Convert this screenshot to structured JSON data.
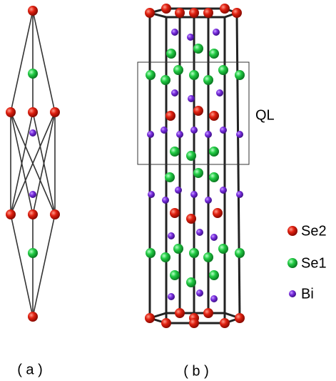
{
  "panels": [
    {
      "label": "( a )"
    },
    {
      "label": "( b )"
    }
  ],
  "box_label": "QL",
  "legend": [
    {
      "label": "Se2"
    },
    {
      "label": "Se1"
    },
    {
      "label": "Bi"
    }
  ]
}
